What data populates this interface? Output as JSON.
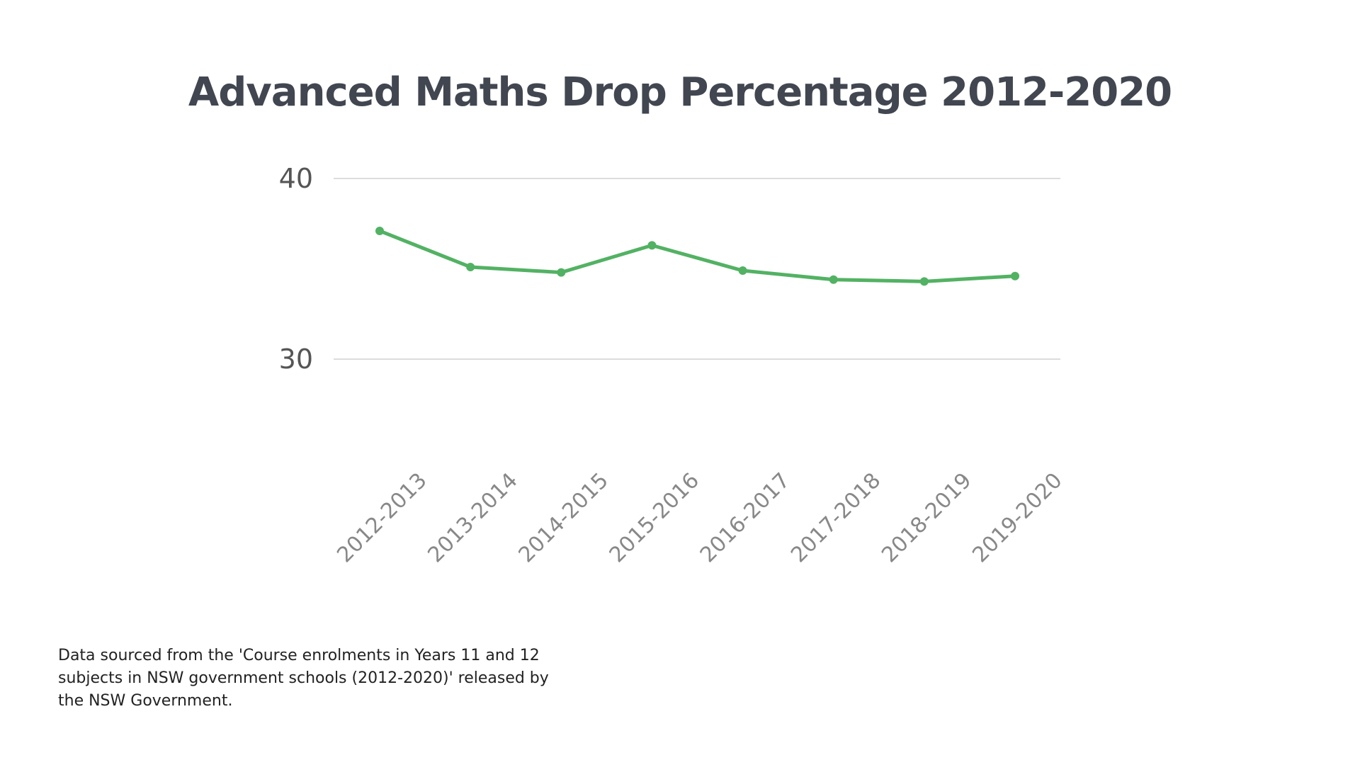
{
  "chart_data": {
    "type": "line",
    "title": "Advanced Maths Drop Percentage 2012-2020",
    "xlabel": "",
    "ylabel": "",
    "categories": [
      "2012-2013",
      "2013-2014",
      "2014-2015",
      "2015-2016",
      "2016-2017",
      "2017-2018",
      "2018-2019",
      "2019-2020"
    ],
    "series": [
      {
        "name": "Drop percentage",
        "values": [
          37.1,
          35.1,
          34.8,
          36.3,
          34.9,
          34.4,
          34.3,
          34.6
        ],
        "color": "#52b263"
      }
    ],
    "yticks": [
      30,
      40
    ],
    "ytick_labels": [
      "30",
      "40"
    ],
    "ylim": [
      30,
      40
    ],
    "grid": true,
    "legend": "none"
  },
  "footnote": "Data sourced from the 'Course enrolments in Years 11 and 12 subjects in NSW government schools (2012-2020)' released by the NSW Government."
}
